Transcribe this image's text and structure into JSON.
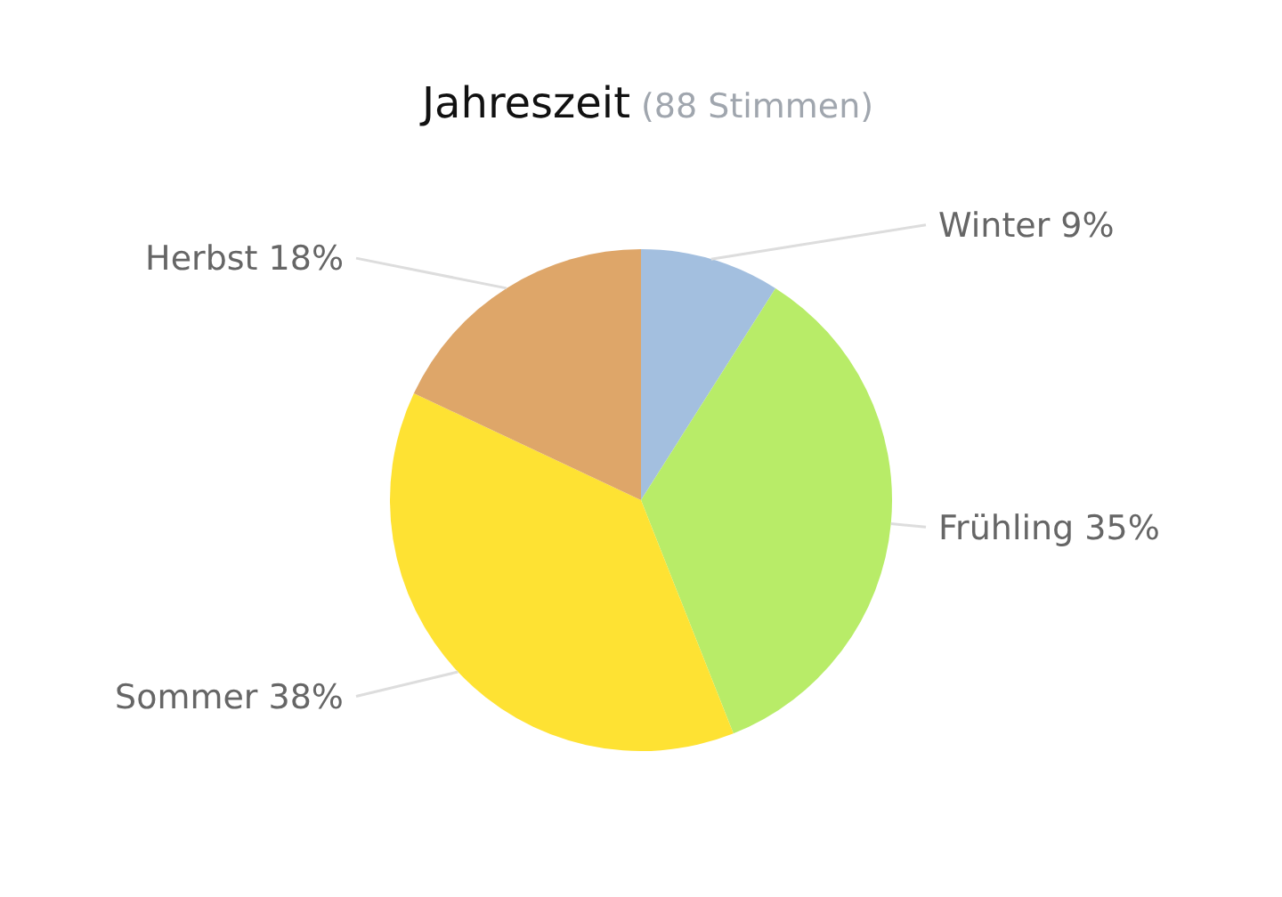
{
  "chart_data": {
    "type": "pie",
    "title": "Jahreszeit",
    "subtitle": "(88 Stimmen)",
    "categories": [
      "Winter",
      "Frühling",
      "Sommer",
      "Herbst"
    ],
    "values": [
      9,
      35,
      38,
      18
    ],
    "colors": [
      "#a3bfdf",
      "#b8ec68",
      "#fee233",
      "#dea669"
    ],
    "value_labels": [
      "9%",
      "35%",
      "38%",
      "18%"
    ]
  }
}
